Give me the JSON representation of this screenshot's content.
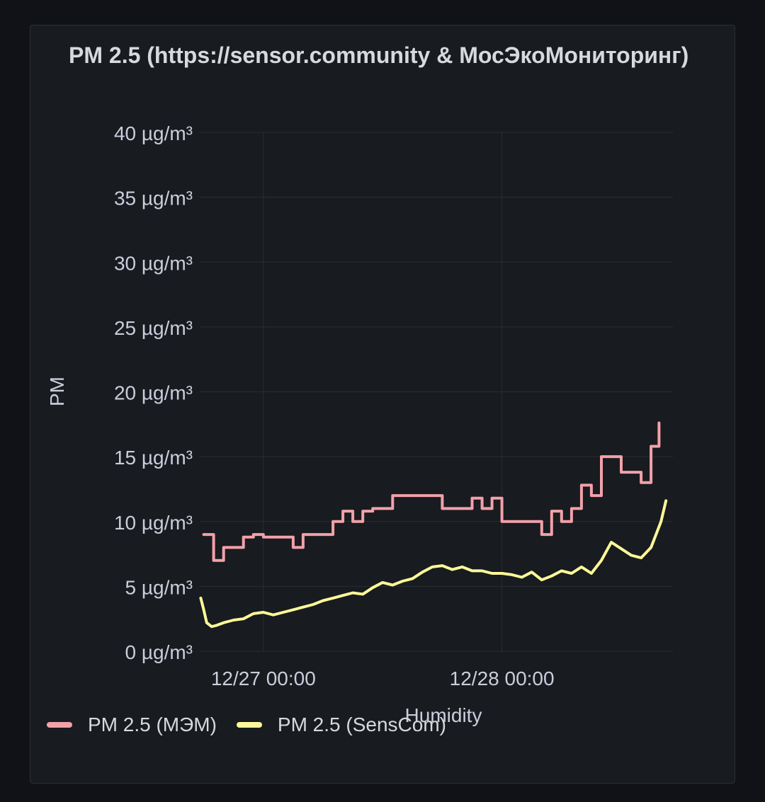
{
  "panel": {
    "title": "PM 2.5 (https://sensor.community & МосЭкоМониторинг)"
  },
  "chart_data": {
    "type": "line",
    "title": "PM 2.5 (https://sensor.community & МосЭкоМониторинг)",
    "xlabel": "Humidity",
    "ylabel": "PM",
    "x_unit": "hours since 12/27 00:00",
    "xlim": [
      -6.4,
      41.2
    ],
    "ylim": [
      0,
      40
    ],
    "y_ticks": [
      {
        "value": 0,
        "label": "0 µg/m³"
      },
      {
        "value": 5,
        "label": "5 µg/m³"
      },
      {
        "value": 10,
        "label": "10 µg/m³"
      },
      {
        "value": 15,
        "label": "15 µg/m³"
      },
      {
        "value": 20,
        "label": "20 µg/m³"
      },
      {
        "value": 25,
        "label": "25 µg/m³"
      },
      {
        "value": 30,
        "label": "30 µg/m³"
      },
      {
        "value": 35,
        "label": "35 µg/m³"
      },
      {
        "value": 40,
        "label": "40 µg/m³"
      }
    ],
    "x_ticks": [
      {
        "value": 0,
        "label": "12/27 00:00"
      },
      {
        "value": 24,
        "label": "12/28 00:00"
      }
    ],
    "grid": true,
    "legend_position": "bottom-left",
    "series": [
      {
        "name": "PM 2.5 (МЭМ)",
        "color": "#f2a1a9",
        "step": true,
        "x": [
          -6,
          -5,
          -4,
          -2,
          -1,
          0,
          1,
          3,
          4,
          5,
          7,
          8,
          9,
          10,
          11,
          12,
          13,
          17,
          18,
          21,
          22,
          23,
          24,
          25,
          28,
          29,
          30,
          31,
          32,
          33,
          34,
          36,
          38,
          39
        ],
        "y": [
          9,
          7,
          8,
          8.8,
          9,
          8.8,
          8.8,
          8,
          9,
          9,
          10,
          10.8,
          10,
          10.8,
          11,
          11,
          12,
          12,
          11,
          11.8,
          11,
          11.8,
          10,
          10,
          9,
          10.8,
          10,
          11,
          12.8,
          12,
          15,
          13.8,
          13,
          15.8
        ]
      },
      {
        "name": "PM 2.5 (SensCom)",
        "color": "#fff899",
        "step": false,
        "x": [
          -6.3,
          -6,
          -5.7,
          -5.2,
          -4.7,
          -4,
          -3,
          -2,
          -1,
          0,
          1,
          2,
          3,
          4,
          5,
          6,
          7,
          8,
          9,
          10,
          11,
          12,
          13,
          14,
          15,
          16,
          17,
          18,
          19,
          20,
          21,
          22,
          23,
          24,
          25,
          26,
          27,
          28,
          29,
          30,
          31,
          32,
          33,
          34,
          35,
          36,
          37,
          38,
          39,
          40,
          40.5
        ],
        "y": [
          4.1,
          3.2,
          2.2,
          1.9,
          2.0,
          2.2,
          2.4,
          2.5,
          2.9,
          3.0,
          2.8,
          3.0,
          3.2,
          3.4,
          3.6,
          3.9,
          4.1,
          4.3,
          4.5,
          4.4,
          4.9,
          5.3,
          5.1,
          5.4,
          5.6,
          6.1,
          6.5,
          6.6,
          6.3,
          6.5,
          6.2,
          6.2,
          6.0,
          6.0,
          5.9,
          5.7,
          6.1,
          5.5,
          5.8,
          6.2,
          6.0,
          6.5,
          6.0,
          7.0,
          8.4,
          7.9,
          7.4,
          7.2,
          8.0,
          10.0,
          11.6
        ]
      }
    ]
  }
}
